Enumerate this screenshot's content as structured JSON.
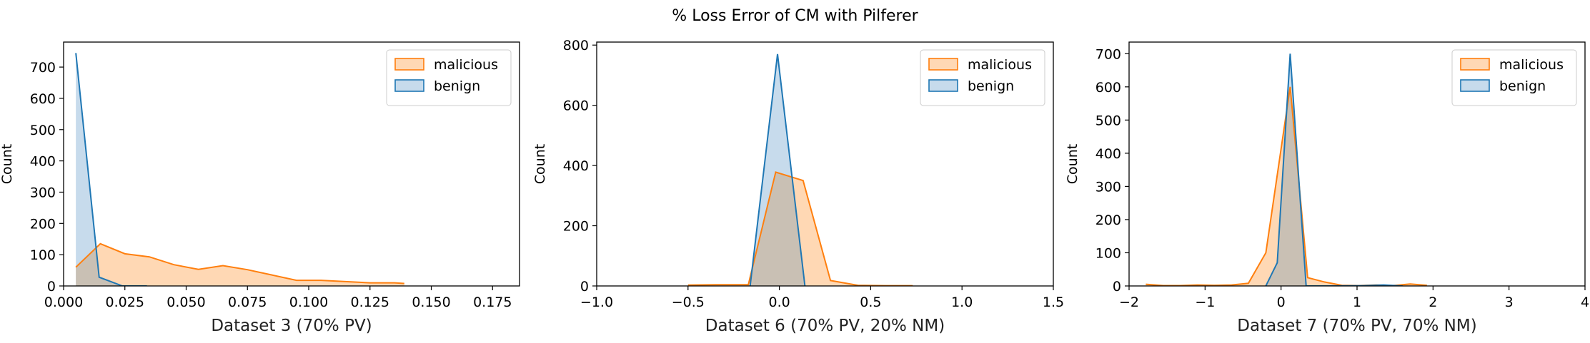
{
  "figure": {
    "title": "% Loss Error of CM with Pilferer"
  },
  "colors": {
    "malicious_line": "#ff7f0e",
    "malicious_fill": "#ffd8b4",
    "benign_line": "#1f77b4",
    "benign_fill": "#c7dbec",
    "overlap_fill": "#c9c0b4"
  },
  "chart_data": [
    {
      "type": "area",
      "title": "",
      "xlabel": "Dataset 3 (70% PV)",
      "ylabel": "Count",
      "xlim": [
        0.0,
        0.186
      ],
      "ylim": [
        0,
        780
      ],
      "xticks": [
        0.0,
        0.025,
        0.05,
        0.075,
        0.1,
        0.125,
        0.15,
        0.175
      ],
      "xtick_labels": [
        "0.000",
        "0.025",
        "0.050",
        "0.075",
        "0.100",
        "0.125",
        "0.150",
        "0.175"
      ],
      "yticks": [
        0,
        100,
        200,
        300,
        400,
        500,
        600,
        700
      ],
      "ytick_labels": [
        "0",
        "100",
        "200",
        "300",
        "400",
        "500",
        "600",
        "700"
      ],
      "legend_position": "top-right",
      "series": [
        {
          "name": "malicious",
          "x": [
            0.005,
            0.015,
            0.025,
            0.035,
            0.045,
            0.055,
            0.065,
            0.075,
            0.085,
            0.095,
            0.105,
            0.115,
            0.125,
            0.135,
            0.139
          ],
          "y": [
            60,
            135,
            103,
            93,
            68,
            53,
            65,
            52,
            35,
            18,
            18,
            14,
            10,
            10,
            8
          ]
        },
        {
          "name": "benign",
          "x": [
            0.005,
            0.0145,
            0.024,
            0.034
          ],
          "y": [
            745,
            28,
            0,
            0
          ]
        }
      ]
    },
    {
      "type": "area",
      "title": "",
      "xlabel": "Dataset 6 (70% PV, 20% NM)",
      "ylabel": "Count",
      "xlim": [
        -1.0,
        1.5
      ],
      "ylim": [
        0,
        810
      ],
      "xticks": [
        -1.0,
        -0.5,
        0.0,
        0.5,
        1.0,
        1.5
      ],
      "xtick_labels": [
        "−1.0",
        "−0.5",
        "0.0",
        "0.5",
        "1.0",
        "1.5"
      ],
      "yticks": [
        0,
        200,
        400,
        600,
        800
      ],
      "ytick_labels": [
        "0",
        "200",
        "400",
        "600",
        "800"
      ],
      "legend_position": "top-right",
      "series": [
        {
          "name": "malicious",
          "x": [
            -0.5,
            -0.35,
            -0.17,
            -0.02,
            0.13,
            0.28,
            0.43,
            0.58,
            0.73
          ],
          "y": [
            3,
            4,
            4,
            378,
            350,
            18,
            2,
            1,
            1
          ]
        },
        {
          "name": "benign",
          "x": [
            -0.16,
            -0.01,
            0.14
          ],
          "y": [
            0,
            770,
            0
          ]
        }
      ]
    },
    {
      "type": "area",
      "title": "",
      "xlabel": "Dataset 7 (70% PV, 70% NM)",
      "ylabel": "Count",
      "xlim": [
        -2,
        4
      ],
      "ylim": [
        0,
        735
      ],
      "xticks": [
        -2,
        -1,
        0,
        1,
        2,
        3,
        4
      ],
      "xtick_labels": [
        "−2",
        "−1",
        "0",
        "1",
        "2",
        "3",
        "4"
      ],
      "yticks": [
        0,
        100,
        200,
        300,
        400,
        500,
        600,
        700
      ],
      "ytick_labels": [
        "0",
        "100",
        "200",
        "300",
        "400",
        "500",
        "600",
        "700"
      ],
      "legend_position": "top-right",
      "series": [
        {
          "name": "malicious",
          "x": [
            -1.78,
            -1.55,
            -1.33,
            -1.1,
            -0.88,
            -0.65,
            -0.43,
            -0.2,
            0.12,
            0.35,
            0.57,
            0.8,
            1.02,
            1.25,
            1.47,
            1.7,
            1.92
          ],
          "y": [
            5,
            1,
            1,
            3,
            2,
            3,
            8,
            100,
            600,
            25,
            12,
            2,
            1,
            3,
            1,
            6,
            2
          ]
        },
        {
          "name": "benign",
          "x": [
            -0.2,
            -0.05,
            0.12,
            0.33,
            0.6,
            1.1,
            1.35,
            1.6
          ],
          "y": [
            0,
            70,
            700,
            0,
            0,
            1,
            3,
            0
          ]
        }
      ]
    }
  ]
}
